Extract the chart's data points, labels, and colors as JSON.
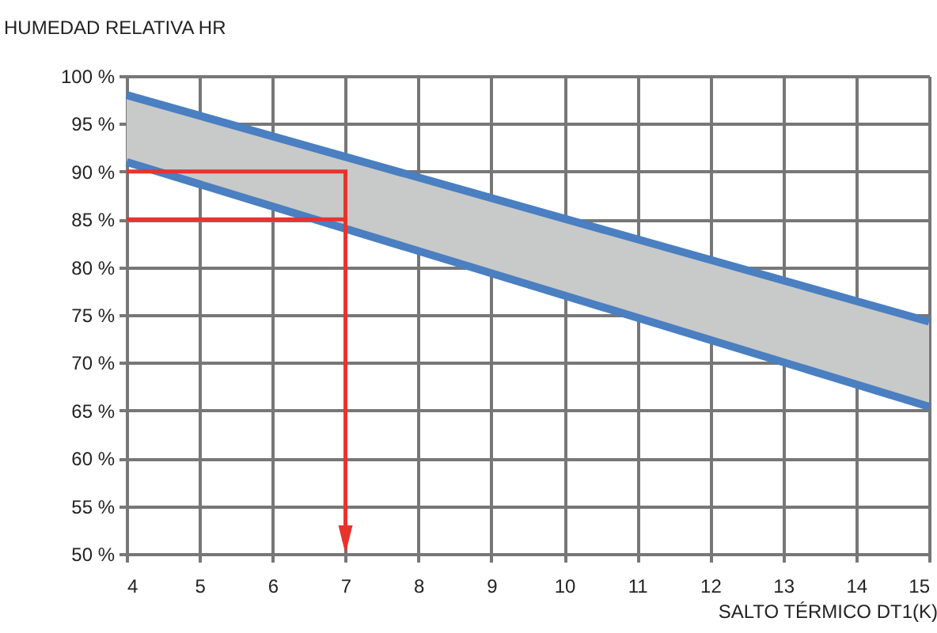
{
  "chart_data": {
    "type": "line",
    "ylabel": "HUMEDAD RELATIVA HR",
    "xlabel": "SALTO TÉRMICO DT1(K)",
    "x": [
      4,
      15
    ],
    "series": [
      {
        "color": "#4a7fc1",
        "values": [
          98,
          74.3
        ],
        "lower": [
          91,
          65.4
        ],
        "upper": [
          98,
          74.3
        ]
      },
      {
        "color": "#4a7fc1",
        "values": [
          91,
          65.4
        ]
      }
    ],
    "xlim": [
      4,
      15
    ],
    "xticks": [
      4,
      5,
      6,
      7,
      8,
      9,
      10,
      11,
      12,
      13,
      14,
      15
    ],
    "ylim": [
      50,
      100
    ],
    "yticks": [
      {
        "value": 50,
        "label": "50 %"
      },
      {
        "value": 55,
        "label": "55 %"
      },
      {
        "value": 60,
        "label": "60 %"
      },
      {
        "value": 65,
        "label": "65 %"
      },
      {
        "value": 70,
        "label": "70 %"
      },
      {
        "value": 75,
        "label": "75 %"
      },
      {
        "value": 80,
        "label": "80 %"
      },
      {
        "value": 85,
        "label": "85 %"
      },
      {
        "value": 90,
        "label": "90 %"
      },
      {
        "value": 95,
        "label": "95 %"
      },
      {
        "value": 100,
        "label": "100 %"
      }
    ],
    "grid": true,
    "marker": "none",
    "line_style": "solid"
  }
}
